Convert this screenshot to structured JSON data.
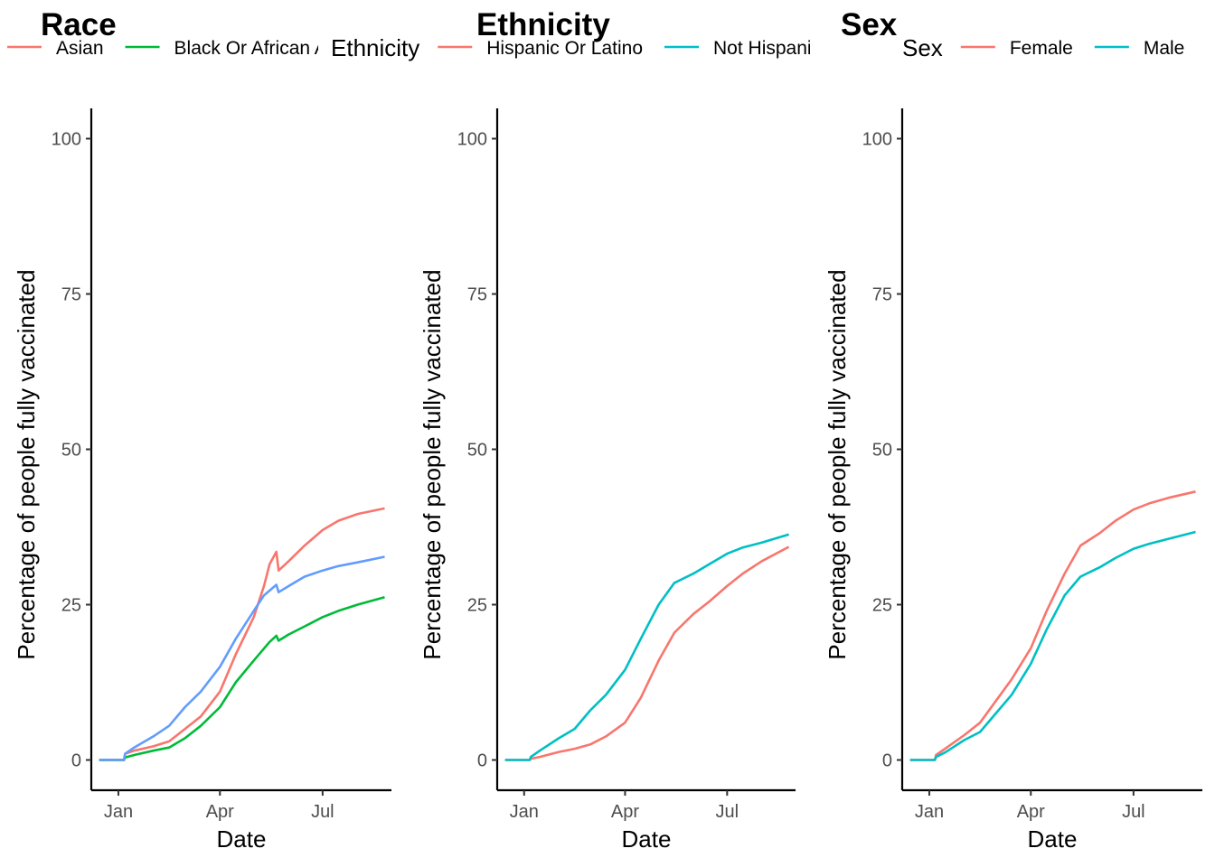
{
  "chart_data": [
    {
      "type": "line",
      "title": "Race",
      "legend_title": "",
      "legend_position": "top",
      "xlabel": "Date",
      "ylabel": "Percentage of people fully vaccinated",
      "x_tick_labels": [
        "Jan",
        "Apr",
        "Jul"
      ],
      "y_ticks": [
        0,
        25,
        50,
        75,
        100
      ],
      "ylim": [
        -5,
        105
      ],
      "xlim": [
        "2020-12-08",
        "2021-08-31"
      ],
      "grid": false,
      "series": [
        {
          "name": "Asian",
          "color": "#F8766D",
          "points": [
            [
              "2020-12-15",
              0
            ],
            [
              "2021-01-06",
              0
            ],
            [
              "2021-01-07",
              1.0
            ],
            [
              "2021-01-15",
              1.5
            ],
            [
              "2021-02-01",
              2.2
            ],
            [
              "2021-02-15",
              3.0
            ],
            [
              "2021-03-01",
              5.0
            ],
            [
              "2021-03-15",
              7.0
            ],
            [
              "2021-04-01",
              11.0
            ],
            [
              "2021-04-15",
              17.0
            ],
            [
              "2021-05-01",
              23.0
            ],
            [
              "2021-05-10",
              28.0
            ],
            [
              "2021-05-15",
              31.5
            ],
            [
              "2021-05-21",
              33.5
            ],
            [
              "2021-05-23",
              30.5
            ],
            [
              "2021-06-01",
              32.0
            ],
            [
              "2021-06-15",
              34.5
            ],
            [
              "2021-07-01",
              37.0
            ],
            [
              "2021-07-15",
              38.5
            ],
            [
              "2021-08-01",
              39.6
            ],
            [
              "2021-08-25",
              40.5
            ]
          ]
        },
        {
          "name": "Black Or African American",
          "color": "#00BA38",
          "points": [
            [
              "2020-12-15",
              0
            ],
            [
              "2021-01-06",
              0
            ],
            [
              "2021-01-07",
              0.4
            ],
            [
              "2021-01-15",
              0.8
            ],
            [
              "2021-02-01",
              1.5
            ],
            [
              "2021-02-15",
              2.0
            ],
            [
              "2021-03-01",
              3.5
            ],
            [
              "2021-03-15",
              5.5
            ],
            [
              "2021-04-01",
              8.5
            ],
            [
              "2021-04-15",
              12.5
            ],
            [
              "2021-05-01",
              16.0
            ],
            [
              "2021-05-15",
              19.0
            ],
            [
              "2021-05-21",
              20.0
            ],
            [
              "2021-05-23",
              19.2
            ],
            [
              "2021-06-01",
              20.2
            ],
            [
              "2021-06-15",
              21.5
            ],
            [
              "2021-07-01",
              23.0
            ],
            [
              "2021-07-15",
              24.0
            ],
            [
              "2021-08-01",
              25.0
            ],
            [
              "2021-08-25",
              26.2
            ]
          ]
        },
        {
          "name": "",
          "color": "#619CFF",
          "points": [
            [
              "2020-12-15",
              0
            ],
            [
              "2021-01-06",
              0
            ],
            [
              "2021-01-07",
              1.0
            ],
            [
              "2021-01-15",
              2.0
            ],
            [
              "2021-02-01",
              3.8
            ],
            [
              "2021-02-15",
              5.5
            ],
            [
              "2021-03-01",
              8.5
            ],
            [
              "2021-03-15",
              11.0
            ],
            [
              "2021-04-01",
              15.0
            ],
            [
              "2021-04-15",
              19.5
            ],
            [
              "2021-05-01",
              24.0
            ],
            [
              "2021-05-10",
              26.5
            ],
            [
              "2021-05-21",
              28.2
            ],
            [
              "2021-05-23",
              27.0
            ],
            [
              "2021-06-01",
              28.0
            ],
            [
              "2021-06-15",
              29.5
            ],
            [
              "2021-07-01",
              30.5
            ],
            [
              "2021-07-15",
              31.2
            ],
            [
              "2021-08-01",
              31.8
            ],
            [
              "2021-08-25",
              32.7
            ]
          ]
        }
      ]
    },
    {
      "type": "line",
      "title": "Ethnicity",
      "legend_title": "Ethnicity",
      "legend_position": "top",
      "xlabel": "Date",
      "ylabel": "Percentage of people fully vaccinated",
      "x_tick_labels": [
        "Jan",
        "Apr",
        "Jul"
      ],
      "y_ticks": [
        0,
        25,
        50,
        75,
        100
      ],
      "ylim": [
        -5,
        105
      ],
      "xlim": [
        "2020-12-08",
        "2021-08-31"
      ],
      "grid": false,
      "series": [
        {
          "name": "Hispanic Or Latino",
          "color": "#F8766D",
          "points": [
            [
              "2020-12-15",
              0
            ],
            [
              "2021-01-06",
              0
            ],
            [
              "2021-01-07",
              0.2
            ],
            [
              "2021-01-15",
              0.5
            ],
            [
              "2021-02-01",
              1.3
            ],
            [
              "2021-02-15",
              1.8
            ],
            [
              "2021-03-01",
              2.5
            ],
            [
              "2021-03-15",
              3.8
            ],
            [
              "2021-04-01",
              6.0
            ],
            [
              "2021-04-15",
              10.0
            ],
            [
              "2021-05-01",
              16.0
            ],
            [
              "2021-05-15",
              20.5
            ],
            [
              "2021-06-01",
              23.5
            ],
            [
              "2021-06-15",
              25.5
            ],
            [
              "2021-07-01",
              28.0
            ],
            [
              "2021-07-15",
              30.0
            ],
            [
              "2021-08-01",
              32.0
            ],
            [
              "2021-08-25",
              34.3
            ]
          ]
        },
        {
          "name": "Not Hispanic Or Latino",
          "color": "#00BFC4",
          "points": [
            [
              "2020-12-15",
              0
            ],
            [
              "2021-01-06",
              0
            ],
            [
              "2021-01-07",
              0.5
            ],
            [
              "2021-01-15",
              1.5
            ],
            [
              "2021-02-01",
              3.5
            ],
            [
              "2021-02-15",
              5.0
            ],
            [
              "2021-03-01",
              8.0
            ],
            [
              "2021-03-15",
              10.5
            ],
            [
              "2021-04-01",
              14.5
            ],
            [
              "2021-04-15",
              19.5
            ],
            [
              "2021-05-01",
              25.0
            ],
            [
              "2021-05-15",
              28.5
            ],
            [
              "2021-06-01",
              30.0
            ],
            [
              "2021-06-15",
              31.5
            ],
            [
              "2021-07-01",
              33.2
            ],
            [
              "2021-07-15",
              34.2
            ],
            [
              "2021-08-01",
              35.0
            ],
            [
              "2021-08-25",
              36.3
            ]
          ]
        }
      ]
    },
    {
      "type": "line",
      "title": "Sex",
      "legend_title": "Sex",
      "legend_position": "top",
      "xlabel": "Date",
      "ylabel": "Percentage of people fully vaccinated",
      "x_tick_labels": [
        "Jan",
        "Apr",
        "Jul"
      ],
      "y_ticks": [
        0,
        25,
        50,
        75,
        100
      ],
      "ylim": [
        -5,
        105
      ],
      "xlim": [
        "2020-12-08",
        "2021-08-31"
      ],
      "grid": false,
      "series": [
        {
          "name": "Female",
          "color": "#F8766D",
          "points": [
            [
              "2020-12-15",
              0
            ],
            [
              "2021-01-06",
              0
            ],
            [
              "2021-01-07",
              0.8
            ],
            [
              "2021-01-15",
              1.8
            ],
            [
              "2021-02-01",
              4.0
            ],
            [
              "2021-02-15",
              6.0
            ],
            [
              "2021-03-01",
              9.5
            ],
            [
              "2021-03-15",
              13.0
            ],
            [
              "2021-04-01",
              18.0
            ],
            [
              "2021-04-15",
              24.0
            ],
            [
              "2021-05-01",
              30.0
            ],
            [
              "2021-05-15",
              34.5
            ],
            [
              "2021-06-01",
              36.5
            ],
            [
              "2021-06-15",
              38.5
            ],
            [
              "2021-07-01",
              40.3
            ],
            [
              "2021-07-15",
              41.3
            ],
            [
              "2021-08-01",
              42.2
            ],
            [
              "2021-08-25",
              43.2
            ]
          ]
        },
        {
          "name": "Male",
          "color": "#00BFC4",
          "points": [
            [
              "2020-12-15",
              0
            ],
            [
              "2021-01-06",
              0
            ],
            [
              "2021-01-07",
              0.5
            ],
            [
              "2021-01-15",
              1.2
            ],
            [
              "2021-02-01",
              3.2
            ],
            [
              "2021-02-15",
              4.5
            ],
            [
              "2021-03-01",
              7.5
            ],
            [
              "2021-03-15",
              10.5
            ],
            [
              "2021-04-01",
              15.5
            ],
            [
              "2021-04-15",
              21.0
            ],
            [
              "2021-05-01",
              26.5
            ],
            [
              "2021-05-15",
              29.5
            ],
            [
              "2021-06-01",
              31.0
            ],
            [
              "2021-06-15",
              32.5
            ],
            [
              "2021-07-01",
              34.0
            ],
            [
              "2021-07-15",
              34.8
            ],
            [
              "2021-08-01",
              35.6
            ],
            [
              "2021-08-25",
              36.7
            ]
          ]
        }
      ]
    }
  ]
}
